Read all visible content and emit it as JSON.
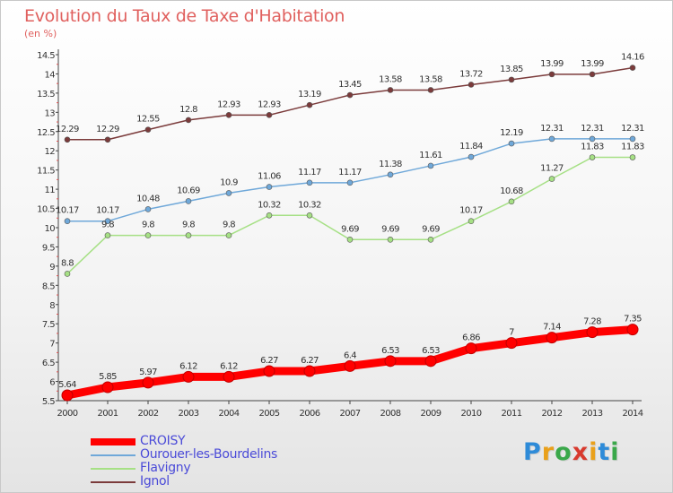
{
  "chart_data": {
    "type": "line",
    "title": "Evolution du Taux de Taxe d'Habitation",
    "ylabel": "(en %)",
    "xlabel": "",
    "ylim": [
      5.5,
      14.5
    ],
    "y_ticks": [
      "5.5",
      "6",
      "6.5",
      "7",
      "7.5",
      "8",
      "8.5",
      "9",
      "9.5",
      "10",
      "10.5",
      "11",
      "11.5",
      "12",
      "12.5",
      "13",
      "13.5",
      "14",
      "14.5"
    ],
    "x": [
      "2000",
      "2001",
      "2002",
      "2003",
      "2004",
      "2005",
      "2006",
      "2007",
      "2008",
      "2009",
      "2010",
      "2011",
      "2012",
      "2013",
      "2014"
    ],
    "grid": false,
    "legend_position": "bottom-left",
    "series": [
      {
        "name": "CROISY",
        "color": "#ff0000",
        "values": [
          5.64,
          5.85,
          5.97,
          6.12,
          6.12,
          6.27,
          6.27,
          6.4,
          6.53,
          6.53,
          6.86,
          7,
          7.14,
          7.28,
          7.35
        ],
        "labels": [
          "5.64",
          "5.85",
          "5.97",
          "6.12",
          "6.12",
          "6.27",
          "6.27",
          "6.4",
          "6.53",
          "6.53",
          "6.86",
          "7",
          "7.14",
          "7.28",
          "7.35"
        ]
      },
      {
        "name": "Ourouer-les-Bourdelins",
        "color": "#6fa8d9",
        "values": [
          10.17,
          10.17,
          10.48,
          10.69,
          10.9,
          11.06,
          11.17,
          11.17,
          11.38,
          11.61,
          11.84,
          12.19,
          12.31,
          12.31,
          12.31
        ],
        "labels": [
          "10.17",
          "10.17",
          "10.48",
          "10.69",
          "10.9",
          "11.06",
          "11.17",
          "11.17",
          "11.38",
          "11.61",
          "11.84",
          "12.19",
          "12.31",
          "12.31",
          "12.31"
        ]
      },
      {
        "name": "Flavigny",
        "color": "#a6e085",
        "values": [
          8.8,
          9.8,
          9.8,
          9.8,
          9.8,
          10.32,
          10.32,
          9.69,
          9.69,
          9.69,
          10.17,
          10.68,
          11.27,
          11.83,
          11.83
        ],
        "labels": [
          "8.8",
          "9.8",
          "9.8",
          "9.8",
          "9.8",
          "10.32",
          "10.32",
          "9.69",
          "9.69",
          "9.69",
          "10.17",
          "10.68",
          "11.27",
          "11.83",
          "11.83"
        ]
      },
      {
        "name": "Ignol",
        "color": "#7b3b3b",
        "values": [
          12.29,
          12.29,
          12.55,
          12.8,
          12.93,
          12.93,
          13.19,
          13.45,
          13.58,
          13.58,
          13.72,
          13.85,
          13.99,
          13.99,
          14.16
        ],
        "labels": [
          "12.29",
          "12.29",
          "12.55",
          "12.8",
          "12.93",
          "12.93",
          "13.19",
          "13.45",
          "13.58",
          "13.58",
          "13.72",
          "13.85",
          "13.99",
          "13.99",
          "14.16"
        ]
      }
    ]
  },
  "legend": {
    "items": [
      {
        "label": "CROISY",
        "color": "#ff0000"
      },
      {
        "label": "Ourouer-les-Bourdelins",
        "color": "#6fa8d9"
      },
      {
        "label": "Flavigny",
        "color": "#a6e085"
      },
      {
        "label": "Ignol",
        "color": "#7b3b3b"
      }
    ]
  },
  "logo": {
    "letters": [
      "P",
      "r",
      "o",
      "x",
      "i",
      "t",
      "i"
    ],
    "colors": [
      "#2e8bd8",
      "#e9a01b",
      "#3aa84a",
      "#d83a2e",
      "#e9a01b",
      "#2e8bd8",
      "#3aa84a"
    ]
  }
}
